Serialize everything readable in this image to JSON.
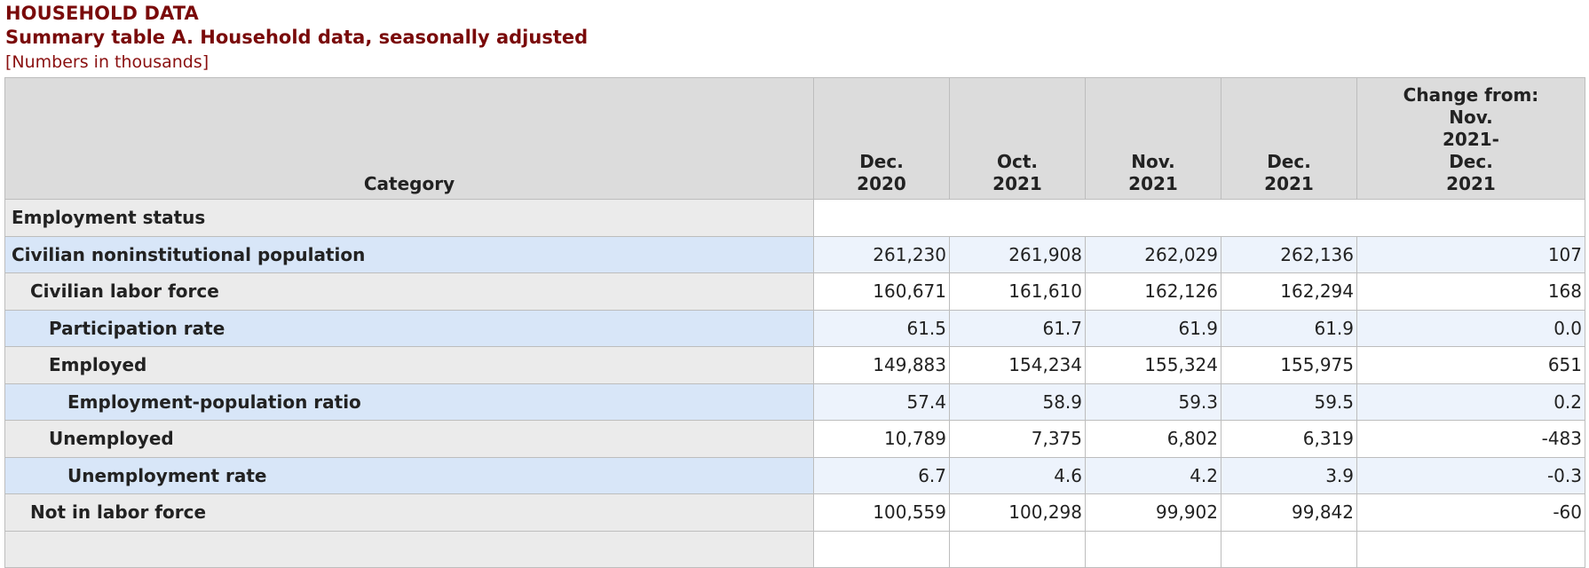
{
  "header": {
    "title": "HOUSEHOLD DATA",
    "subtitle": "Summary table A. Household data, seasonally adjusted",
    "note": "[Numbers in thousands]"
  },
  "columns": {
    "category": "Category",
    "c1": [
      "Dec.",
      "2020"
    ],
    "c2": [
      "Oct.",
      "2021"
    ],
    "c3": [
      "Nov.",
      "2021"
    ],
    "c4": [
      "Dec.",
      "2021"
    ],
    "c5": [
      "Change from:",
      "Nov.",
      "2021-",
      "Dec.",
      "2021"
    ]
  },
  "section": "Employment status",
  "rows": [
    {
      "label": "Civilian noninstitutional population",
      "level": 0,
      "values": [
        "261,230",
        "261,908",
        "262,029",
        "262,136",
        "107"
      ]
    },
    {
      "label": "Civilian labor force",
      "level": 1,
      "values": [
        "160,671",
        "161,610",
        "162,126",
        "162,294",
        "168"
      ]
    },
    {
      "label": "Participation rate",
      "level": 2,
      "values": [
        "61.5",
        "61.7",
        "61.9",
        "61.9",
        "0.0"
      ]
    },
    {
      "label": "Employed",
      "level": 2,
      "values": [
        "149,883",
        "154,234",
        "155,324",
        "155,975",
        "651"
      ]
    },
    {
      "label": "Employment-population ratio",
      "level": 3,
      "values": [
        "57.4",
        "58.9",
        "59.3",
        "59.5",
        "0.2"
      ]
    },
    {
      "label": "Unemployed",
      "level": 2,
      "values": [
        "10,789",
        "7,375",
        "6,802",
        "6,319",
        "-483"
      ]
    },
    {
      "label": "Unemployment rate",
      "level": 3,
      "values": [
        "6.7",
        "4.6",
        "4.2",
        "3.9",
        "-0.3"
      ]
    },
    {
      "label": "Not in labor force",
      "level": 1,
      "values": [
        "100,559",
        "100,298",
        "99,902",
        "99,842",
        "-60"
      ]
    }
  ]
}
